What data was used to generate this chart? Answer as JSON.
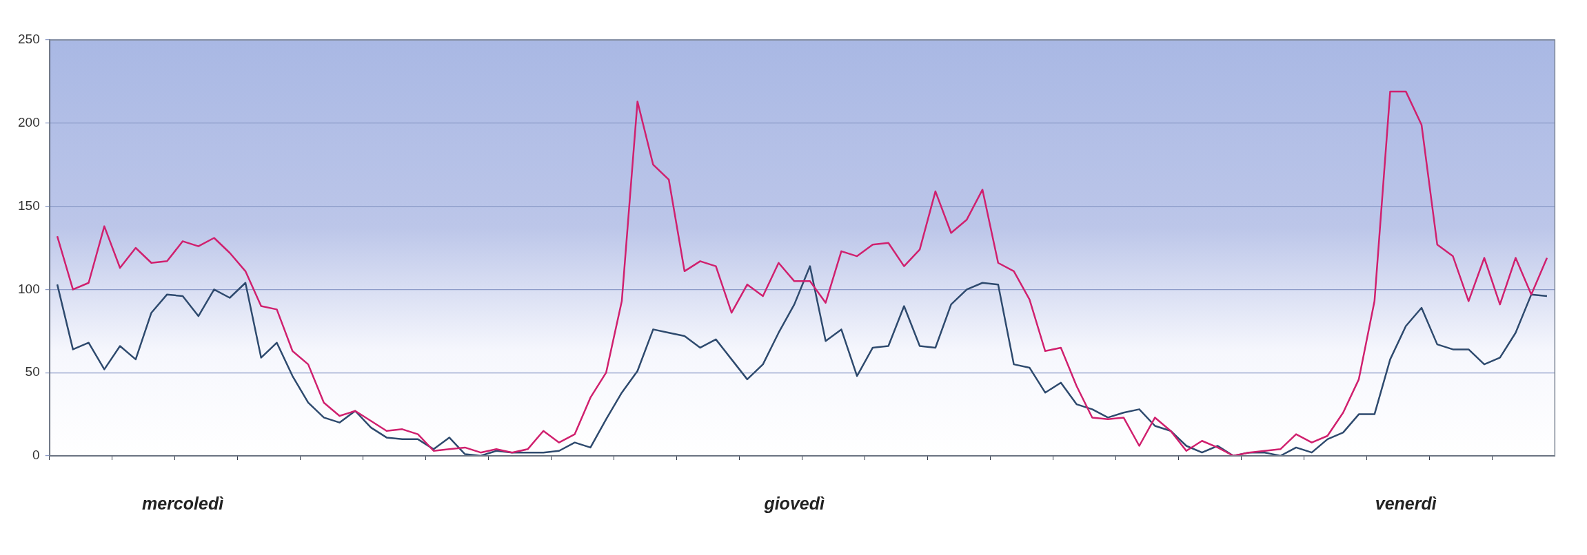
{
  "chart_data": {
    "type": "line",
    "categories": [
      null,
      null,
      null,
      null,
      null,
      null,
      null,
      null,
      "mercoledì",
      null,
      null,
      null,
      null,
      null,
      null,
      null,
      null,
      null,
      null,
      null,
      null,
      null,
      null,
      null,
      null,
      null,
      null,
      null,
      null,
      null,
      null,
      null,
      null,
      null,
      null,
      null,
      null,
      null,
      null,
      null,
      null,
      null,
      null,
      null,
      null,
      null,
      null,
      "giovedì",
      null,
      null,
      null,
      null,
      null,
      null,
      null,
      null,
      null,
      null,
      null,
      null,
      null,
      null,
      null,
      null,
      null,
      null,
      null,
      null,
      null,
      null,
      null,
      null,
      null,
      null,
      null,
      null,
      null,
      null,
      null,
      null,
      null,
      null,
      null,
      null,
      null,
      null,
      "venerdì",
      null,
      null,
      null,
      null,
      null,
      null,
      null,
      null,
      null
    ],
    "series": [
      {
        "color": "#d0206e",
        "values": [
          132,
          100,
          104,
          138,
          113,
          125,
          116,
          117,
          129,
          126,
          131,
          122,
          111,
          90,
          88,
          63,
          55,
          32,
          24,
          27,
          21,
          15,
          16,
          13,
          3,
          4,
          5,
          2,
          4,
          2,
          4,
          15,
          8,
          13,
          35,
          50,
          93,
          213,
          175,
          166,
          111,
          117,
          114,
          86,
          103,
          96,
          116,
          105,
          105,
          92,
          123,
          120,
          127,
          128,
          114,
          124,
          159,
          134,
          142,
          160,
          116,
          111,
          94,
          63,
          65,
          42,
          23,
          22,
          23,
          6,
          23,
          15,
          3,
          9,
          5,
          0,
          2,
          3,
          4,
          13,
          8,
          12,
          26,
          46,
          93,
          219,
          219,
          199,
          127,
          120,
          93,
          119,
          91,
          119,
          97,
          119
        ]
      },
      {
        "color": "#2e4a6e",
        "values": [
          103,
          64,
          68,
          52,
          66,
          58,
          86,
          97,
          96,
          84,
          100,
          95,
          104,
          59,
          68,
          48,
          32,
          23,
          20,
          27,
          17,
          11,
          10,
          10,
          4,
          11,
          1,
          0,
          3,
          2,
          2,
          2,
          3,
          8,
          5,
          22,
          38,
          51,
          76,
          74,
          72,
          65,
          70,
          58,
          46,
          55,
          74,
          91,
          114,
          69,
          76,
          48,
          65,
          66,
          90,
          66,
          65,
          91,
          100,
          104,
          103,
          55,
          53,
          38,
          44,
          31,
          28,
          23,
          26,
          28,
          18,
          15,
          6,
          2,
          6,
          0,
          2,
          2,
          0,
          5,
          2,
          10,
          14,
          25,
          25,
          58,
          78,
          89,
          67,
          64,
          64,
          55,
          59,
          74,
          97,
          96
        ]
      }
    ],
    "ylim": [
      0,
      250
    ],
    "yticks": [
      0,
      50,
      100,
      150,
      200,
      250
    ],
    "grid": "y",
    "legend": false,
    "marker": "none",
    "line_style": "solid"
  }
}
